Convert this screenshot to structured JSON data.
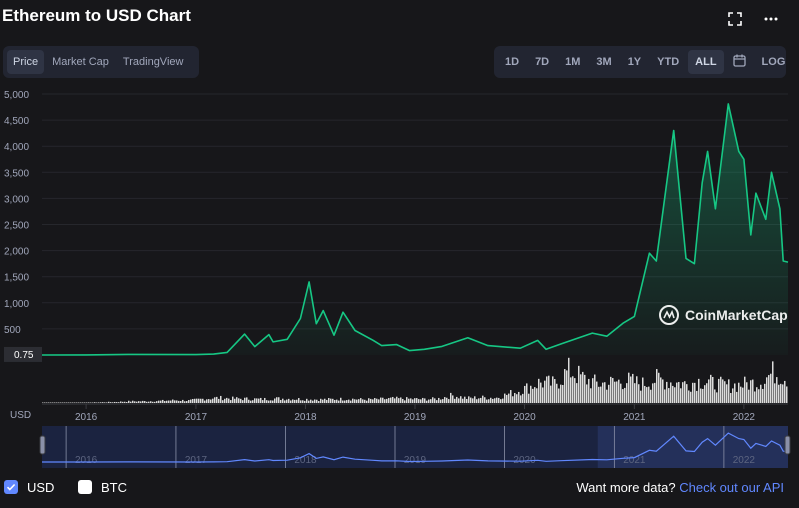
{
  "page": {
    "title": "Ethereum to USD Chart",
    "view_tabs": [
      "Price",
      "Market Cap",
      "TradingView"
    ],
    "active_view": "Price",
    "range_buttons": [
      "1D",
      "7D",
      "1M",
      "3M",
      "1Y",
      "YTD",
      "ALL"
    ],
    "active_range": "ALL",
    "calendar_icon": "calendar-icon",
    "log_label": "LOG",
    "fullscreen_icon": "fullscreen-icon",
    "more_icon": "more-dots-icon"
  },
  "legend": {
    "usd_label": "USD",
    "btc_label": "BTC",
    "usd_checked": true,
    "btc_checked": false
  },
  "footer": {
    "more_data_text": "Want more data?",
    "api_link_text": "Check out our API"
  },
  "watermark": "CoinMarketCap",
  "colors": {
    "background": "#17171a",
    "price_line": "#16c784",
    "volume": "#ffffff",
    "accent": "#6188ff",
    "navigator": "#1b2340"
  },
  "chart_data": {
    "type": "area",
    "currency_label": "USD",
    "y_ticks": [
      "5,000",
      "4,500",
      "4,000",
      "3,500",
      "3,000",
      "2,500",
      "2,000",
      "1,500",
      "1,000",
      "500"
    ],
    "ylim": [
      0,
      5000
    ],
    "first_price_label": "0.75",
    "x_ticks": [
      "2016",
      "2017",
      "2018",
      "2019",
      "2020",
      "2021",
      "2022"
    ],
    "navigator_ticks": [
      "2016",
      "2017",
      "2018",
      "2019",
      "2020",
      "2021",
      "2022"
    ],
    "grid": true,
    "series": [
      {
        "name": "USD",
        "x": [
          "2015-08-07",
          "2016-01-01",
          "2016-06-01",
          "2017-01-01",
          "2017-03-01",
          "2017-04-15",
          "2017-06-12",
          "2017-07-16",
          "2017-09-01",
          "2017-09-15",
          "2017-11-01",
          "2017-12-15",
          "2018-01-13",
          "2018-02-06",
          "2018-03-01",
          "2018-04-06",
          "2018-05-06",
          "2018-06-15",
          "2018-08-15",
          "2018-09-12",
          "2018-11-01",
          "2018-12-14",
          "2019-02-01",
          "2019-04-01",
          "2019-06-26",
          "2019-09-01",
          "2019-12-18",
          "2020-02-14",
          "2020-03-13",
          "2020-05-01",
          "2020-08-14",
          "2020-10-01",
          "2020-11-24",
          "2021-01-01",
          "2021-02-20",
          "2021-03-15",
          "2021-05-12",
          "2021-06-22",
          "2021-07-20",
          "2021-08-15",
          "2021-09-02",
          "2021-09-28",
          "2021-11-10",
          "2021-12-15",
          "2022-01-01",
          "2022-01-24",
          "2022-02-10",
          "2022-03-15",
          "2022-04-03",
          "2022-05-01",
          "2022-05-12",
          "2022-05-28"
        ],
        "values": [
          0.75,
          1,
          12,
          8,
          18,
          50,
          400,
          160,
          390,
          250,
          300,
          700,
          1400,
          600,
          850,
          380,
          820,
          470,
          280,
          180,
          200,
          85,
          110,
          165,
          330,
          180,
          130,
          280,
          110,
          210,
          420,
          360,
          610,
          740,
          1950,
          1800,
          4300,
          1850,
          1750,
          3300,
          3900,
          2800,
          4810,
          3900,
          3750,
          2300,
          3100,
          2600,
          3500,
          2800,
          1800,
          1780
        ]
      }
    ],
    "volume_relative": [
      0.01,
      0.01,
      0.01,
      0.01,
      0.02,
      0.03,
      0.05,
      0.05,
      0.06,
      0.08,
      0.07,
      0.12,
      0.15,
      0.13,
      0.12,
      0.11,
      0.13,
      0.12,
      0.11,
      0.1,
      0.11,
      0.12,
      0.1,
      0.11,
      0.13,
      0.12,
      0.11,
      0.12,
      0.22,
      0.14,
      0.16,
      0.15,
      0.28,
      0.42,
      0.6,
      0.55,
      0.95,
      0.7,
      0.55,
      0.6,
      0.65,
      0.55,
      0.7,
      0.6,
      0.55,
      0.65,
      0.55,
      0.5,
      0.55,
      0.6,
      0.9,
      0.7
    ]
  }
}
